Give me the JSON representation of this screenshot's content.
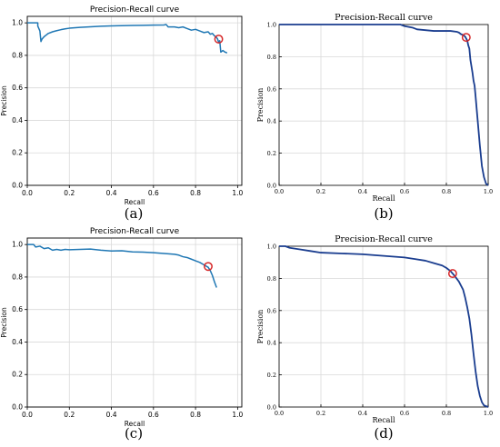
{
  "colors": {
    "curve_a": "#1f77b4",
    "curve_b": "#1a3d8f",
    "marker": "#d62728",
    "grid": "#d9d9d9"
  },
  "chart_data": [
    {
      "id": "a",
      "caption": "(a)",
      "type": "line",
      "style": "mpl",
      "title": "Precision-Recall curve",
      "xlabel": "Recall",
      "ylabel": "Precision",
      "xlim": [
        0,
        1.02
      ],
      "ylim": [
        0,
        1.04
      ],
      "xticks": [
        "0.0",
        "0.2",
        "0.4",
        "0.6",
        "0.8",
        "1.0"
      ],
      "yticks": [
        "0.0",
        "0.2",
        "0.4",
        "0.6",
        "0.8",
        "1.0"
      ],
      "grid": true,
      "series": [
        {
          "x": [
            0,
            0.05,
            0.05,
            0.06,
            0.065,
            0.07,
            0.08,
            0.09,
            0.1,
            0.12,
            0.14,
            0.16,
            0.18,
            0.2,
            0.25,
            0.3,
            0.35,
            0.4,
            0.45,
            0.5,
            0.55,
            0.6,
            0.65,
            0.66,
            0.67,
            0.7,
            0.72,
            0.74,
            0.76,
            0.78,
            0.8,
            0.82,
            0.84,
            0.86,
            0.87,
            0.88,
            0.89,
            0.9,
            0.905,
            0.91,
            0.915,
            0.92,
            0.93,
            0.94,
            0.95
          ],
          "y": [
            1.0,
            1.0,
            0.98,
            0.95,
            0.885,
            0.9,
            0.915,
            0.925,
            0.935,
            0.945,
            0.952,
            0.958,
            0.963,
            0.967,
            0.972,
            0.976,
            0.979,
            0.981,
            0.983,
            0.984,
            0.985,
            0.986,
            0.987,
            0.99,
            0.975,
            0.975,
            0.97,
            0.975,
            0.965,
            0.955,
            0.96,
            0.95,
            0.94,
            0.945,
            0.93,
            0.935,
            0.92,
            0.91,
            0.9,
            0.88,
            0.89,
            0.82,
            0.83,
            0.82,
            0.815
          ]
        }
      ],
      "marker": {
        "x": 0.91,
        "y": 0.9
      }
    },
    {
      "id": "b",
      "caption": "(b)",
      "type": "line",
      "style": "matlab",
      "title": "Precision-Recall curve",
      "xlabel": "Recall",
      "ylabel": "Precision",
      "xlim": [
        0,
        1
      ],
      "ylim": [
        0,
        1
      ],
      "xticks": [
        "0.0",
        "0.2",
        "0.4",
        "0.6",
        "0.8",
        "1.0"
      ],
      "yticks": [
        "0.0",
        "0.2",
        "0.4",
        "0.6",
        "0.8",
        "1.0"
      ],
      "grid": true,
      "series": [
        {
          "x": [
            0,
            0.58,
            0.6,
            0.62,
            0.64,
            0.66,
            0.7,
            0.74,
            0.78,
            0.82,
            0.85,
            0.86,
            0.87,
            0.88,
            0.89,
            0.9,
            0.905,
            0.91,
            0.915,
            0.92,
            0.925,
            0.93,
            0.935,
            0.94,
            0.95,
            0.96,
            0.97,
            0.98,
            0.99,
            1.0
          ],
          "y": [
            1.0,
            1.0,
            0.99,
            0.985,
            0.98,
            0.97,
            0.965,
            0.96,
            0.96,
            0.96,
            0.955,
            0.95,
            0.94,
            0.935,
            0.925,
            0.9,
            0.87,
            0.85,
            0.78,
            0.74,
            0.7,
            0.65,
            0.62,
            0.55,
            0.4,
            0.25,
            0.12,
            0.05,
            0.01,
            0.0
          ]
        }
      ],
      "marker": {
        "x": 0.895,
        "y": 0.92
      }
    },
    {
      "id": "c",
      "caption": "(c)",
      "type": "line",
      "style": "mpl",
      "title": "Precision-Recall curve",
      "xlabel": "Recall",
      "ylabel": "Precision",
      "xlim": [
        0,
        1.02
      ],
      "ylim": [
        0,
        1.04
      ],
      "xticks": [
        "0.0",
        "0.2",
        "0.4",
        "0.6",
        "0.8",
        "1.0"
      ],
      "yticks": [
        "0.0",
        "0.2",
        "0.4",
        "0.6",
        "0.8",
        "1.0"
      ],
      "grid": true,
      "series": [
        {
          "x": [
            0,
            0.03,
            0.04,
            0.06,
            0.08,
            0.1,
            0.12,
            0.14,
            0.16,
            0.18,
            0.2,
            0.25,
            0.3,
            0.35,
            0.4,
            0.45,
            0.5,
            0.55,
            0.6,
            0.65,
            0.7,
            0.72,
            0.74,
            0.76,
            0.78,
            0.8,
            0.82,
            0.84,
            0.86,
            0.87,
            0.88,
            0.89,
            0.9
          ],
          "y": [
            1.0,
            1.0,
            0.985,
            0.99,
            0.975,
            0.98,
            0.965,
            0.97,
            0.965,
            0.97,
            0.968,
            0.97,
            0.972,
            0.965,
            0.96,
            0.962,
            0.955,
            0.953,
            0.95,
            0.945,
            0.94,
            0.935,
            0.925,
            0.92,
            0.91,
            0.9,
            0.89,
            0.875,
            0.86,
            0.84,
            0.81,
            0.77,
            0.735
          ]
        }
      ],
      "marker": {
        "x": 0.86,
        "y": 0.865
      }
    },
    {
      "id": "d",
      "caption": "(d)",
      "type": "line",
      "style": "matlab",
      "title": "Precision-Recall curve",
      "xlabel": "Recall",
      "ylabel": "Precision",
      "xlim": [
        0,
        1
      ],
      "ylim": [
        0,
        1
      ],
      "xticks": [
        "0.0",
        "0.2",
        "0.4",
        "0.6",
        "0.8",
        "1.0"
      ],
      "yticks": [
        "0.0",
        "0.2",
        "0.4",
        "0.6",
        "0.8",
        "1.0"
      ],
      "grid": true,
      "series": [
        {
          "x": [
            0,
            0.03,
            0.05,
            0.1,
            0.15,
            0.2,
            0.3,
            0.4,
            0.5,
            0.55,
            0.6,
            0.65,
            0.7,
            0.74,
            0.78,
            0.8,
            0.82,
            0.83,
            0.84,
            0.86,
            0.88,
            0.89,
            0.9,
            0.91,
            0.92,
            0.93,
            0.94,
            0.95,
            0.96,
            0.97,
            0.98,
            1.0
          ],
          "y": [
            1.0,
            1.0,
            0.99,
            0.98,
            0.97,
            0.96,
            0.955,
            0.95,
            0.94,
            0.935,
            0.93,
            0.92,
            0.91,
            0.895,
            0.88,
            0.865,
            0.845,
            0.83,
            0.815,
            0.78,
            0.73,
            0.68,
            0.62,
            0.55,
            0.45,
            0.33,
            0.22,
            0.13,
            0.07,
            0.03,
            0.01,
            0.0
          ]
        }
      ],
      "marker": {
        "x": 0.83,
        "y": 0.83
      }
    }
  ]
}
